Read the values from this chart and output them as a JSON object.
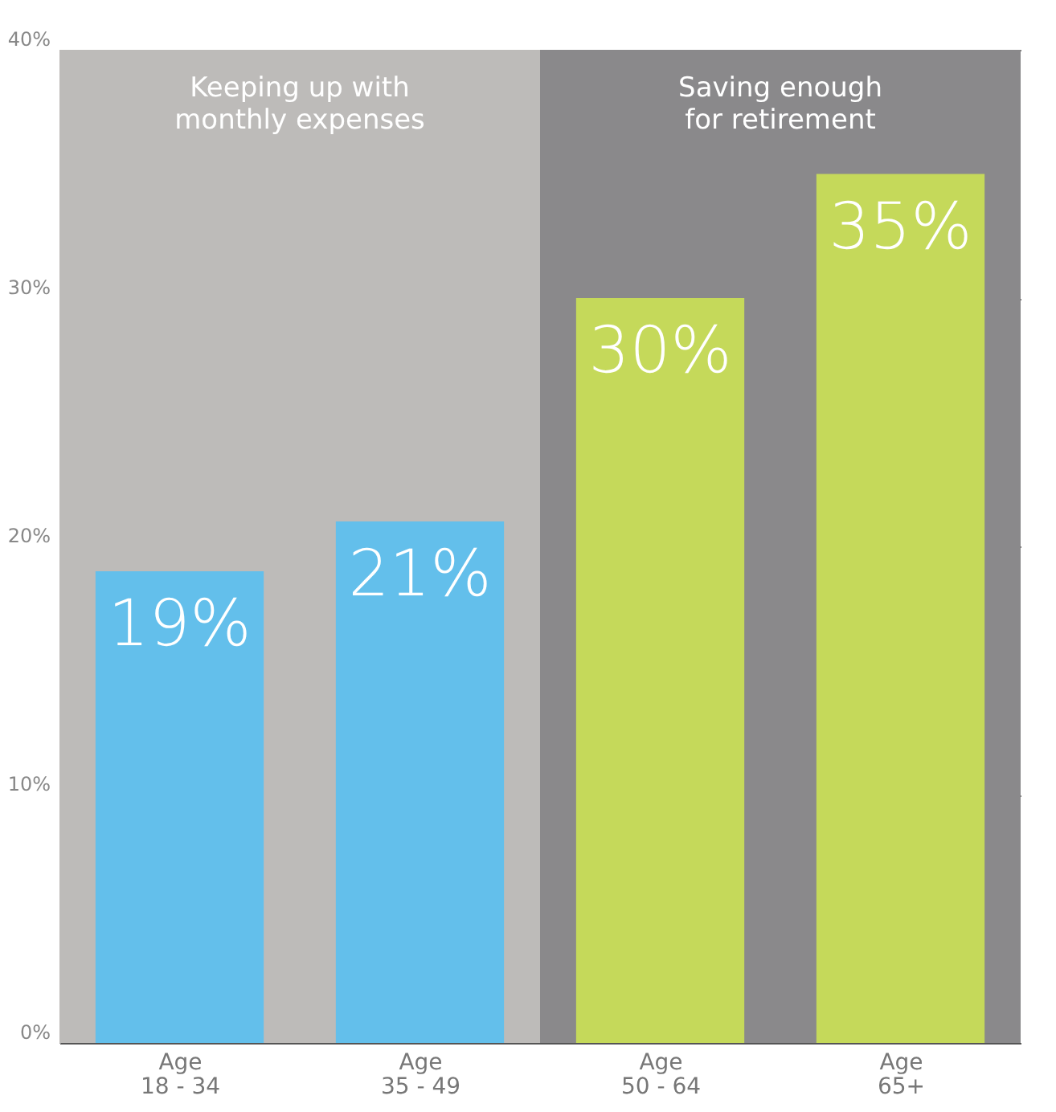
{
  "chart_data": {
    "type": "bar",
    "categories": [
      "Age\n18 - 34",
      "Age\n35 - 49",
      "Age\n50 - 64",
      "Age\n65+"
    ],
    "values": [
      19,
      21,
      30,
      35
    ],
    "colors": [
      "#63bfeb",
      "#63bfeb",
      "#c5d95a",
      "#c5d95a"
    ],
    "value_labels": [
      "19%",
      "21%",
      "30%",
      "35%"
    ],
    "ylim": [
      0,
      40
    ],
    "yticks": [
      {
        "value": 0,
        "label": "0%"
      },
      {
        "value": 10,
        "label": "10%"
      },
      {
        "value": 20,
        "label": "20%"
      },
      {
        "value": 30,
        "label": "30%"
      },
      {
        "value": 40,
        "label": "40%"
      }
    ],
    "grid": "y",
    "bands": [
      {
        "axis": "x",
        "from": "Age\n18 - 34",
        "to": "Age\n35 - 49",
        "label": "Keeping up with\nmonthly expenses",
        "color": "#bdbbb9"
      },
      {
        "axis": "x",
        "from": "Age\n50 - 64",
        "to": "Age\n65+",
        "label": "Saving enough\nfor retirement",
        "color": "#8a898b"
      }
    ]
  }
}
